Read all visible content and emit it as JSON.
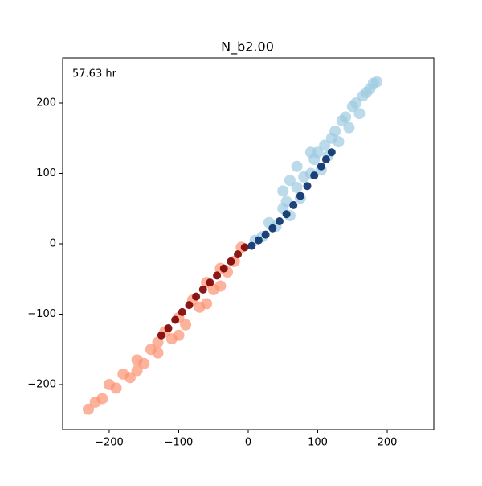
{
  "chart_data": {
    "type": "scatter",
    "title": "N_b2.00",
    "annotation": "57.63 hr",
    "xlim": [
      -267,
      267
    ],
    "ylim": [
      -264,
      264
    ],
    "xticks": [
      {
        "value": -200,
        "label": "−200"
      },
      {
        "value": -100,
        "label": "−100"
      },
      0,
      100,
      200
    ],
    "yticks": [
      {
        "value": -200,
        "label": "−200"
      },
      {
        "value": -100,
        "label": "−100"
      },
      0,
      100,
      200
    ],
    "series": [
      {
        "color": "#fc9272",
        "x": [
          -10,
          -20,
          -30,
          -40,
          -50,
          -60,
          -70,
          -80,
          -90,
          -100,
          -110,
          -120,
          -130,
          -140,
          -150,
          -160,
          -170,
          -180,
          -190,
          -200,
          -210,
          -220,
          -230,
          -40,
          -60,
          -100,
          -130,
          -160
        ],
        "values": [
          -5,
          -25,
          -40,
          -35,
          -65,
          -55,
          -90,
          -80,
          -115,
          -105,
          -135,
          -125,
          -155,
          -150,
          -170,
          -165,
          -190,
          -185,
          -205,
          -200,
          -220,
          -225,
          -235,
          -60,
          -85,
          -130,
          -140,
          -180
        ]
      },
      {
        "color": "#7f0000",
        "x": [
          -5,
          -15,
          -25,
          -35,
          -45,
          -55,
          -65,
          -75,
          -85,
          -95,
          -105,
          -115,
          -125
        ],
        "values": [
          -5,
          -15,
          -25,
          -35,
          -45,
          -55,
          -65,
          -75,
          -87,
          -97,
          -108,
          -120,
          -130
        ]
      },
      {
        "color": "#9ecae1",
        "x": [
          10,
          20,
          30,
          40,
          50,
          55,
          60,
          70,
          75,
          80,
          90,
          95,
          100,
          105,
          110,
          115,
          120,
          125,
          130,
          135,
          140,
          145,
          150,
          155,
          160,
          165,
          170,
          175,
          180,
          185,
          60,
          70,
          50,
          90
        ],
        "values": [
          5,
          10,
          30,
          25,
          50,
          60,
          40,
          80,
          65,
          95,
          100,
          120,
          130,
          105,
          140,
          125,
          150,
          160,
          145,
          175,
          180,
          165,
          195,
          200,
          185,
          210,
          215,
          220,
          228,
          230,
          90,
          110,
          75,
          130
        ]
      },
      {
        "color": "#08306b",
        "x": [
          5,
          15,
          25,
          35,
          45,
          55,
          65,
          75,
          85,
          95,
          105,
          112,
          120
        ],
        "values": [
          -3,
          5,
          13,
          22,
          32,
          42,
          55,
          68,
          82,
          97,
          110,
          120,
          130
        ]
      }
    ]
  }
}
